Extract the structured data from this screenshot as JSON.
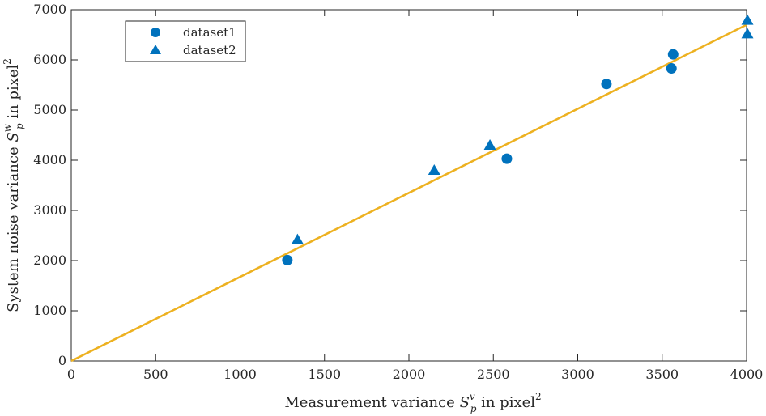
{
  "chart_data": {
    "type": "scatter",
    "title": "",
    "xlabel": {
      "main": "Measurement variance ",
      "sym": "S",
      "sub": "p",
      "sup": "v",
      "tail": " in pixel",
      "tail_sup": "2"
    },
    "ylabel": {
      "main": "System noise variance ",
      "sym": "S",
      "sub": "p",
      "sup": "w",
      "tail": " in pixel",
      "tail_sup": "2"
    },
    "xlim": [
      0,
      4000
    ],
    "ylim": [
      0,
      7000
    ],
    "xticks": [
      0,
      500,
      1000,
      1500,
      2000,
      2500,
      3000,
      3500,
      4000
    ],
    "yticks": [
      0,
      1000,
      2000,
      3000,
      4000,
      5000,
      6000,
      7000
    ],
    "grid": false,
    "legend_position": "top-left",
    "series": [
      {
        "name": "dataset1",
        "marker": "circle",
        "color": "#0072BD",
        "x": [
          1280,
          2580,
          3170,
          3555,
          3565
        ],
        "y": [
          2010,
          4030,
          5520,
          5830,
          6110
        ]
      },
      {
        "name": "dataset2",
        "marker": "triangle",
        "color": "#0072BD",
        "x": [
          1340,
          2150,
          2480,
          4005,
          4005
        ],
        "y": [
          2410,
          3790,
          4290,
          6780,
          6510
        ]
      }
    ],
    "fit_line": {
      "color": "#EDB120",
      "x": [
        0,
        4000
      ],
      "y": [
        0,
        6700
      ]
    }
  }
}
